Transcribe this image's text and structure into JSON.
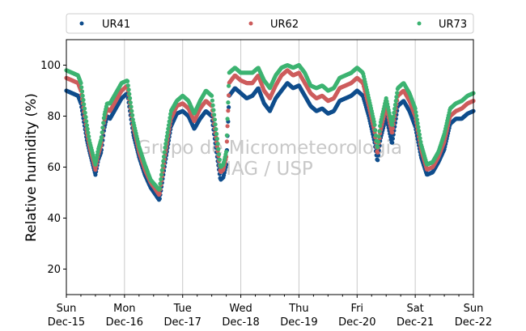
{
  "chart_data": {
    "type": "scatter",
    "title": "",
    "xlabel": "",
    "ylabel": "Relative humidity (%)",
    "ylim": [
      10,
      110
    ],
    "xlim": [
      0,
      7
    ],
    "yticks": [
      20,
      40,
      60,
      80,
      100
    ],
    "xticks": [
      {
        "day": "Sun",
        "date": "Dec-15"
      },
      {
        "day": "Mon",
        "date": "Dec-16"
      },
      {
        "day": "Tue",
        "date": "Dec-17"
      },
      {
        "day": "Wed",
        "date": "Dec-18"
      },
      {
        "day": "Thu",
        "date": "Dec-19"
      },
      {
        "day": "Fri",
        "date": "Dec-20"
      },
      {
        "day": "Sat",
        "date": "Dec-21"
      },
      {
        "day": "Sun",
        "date": "Dec-22"
      }
    ],
    "grid": "vertical",
    "legend_position": "top",
    "watermark": [
      "Grupo de Micrometeorologia",
      "IAG / USP"
    ],
    "x_unit": "days since Dec-15 00:00",
    "series": [
      {
        "name": "UR41",
        "color": "#0f4d8c",
        "x": [
          0,
          0.1,
          0.2,
          0.25,
          0.3,
          0.35,
          0.4,
          0.5,
          0.55,
          0.6,
          0.65,
          0.7,
          0.75,
          0.85,
          0.95,
          1.05,
          1.15,
          1.25,
          1.35,
          1.45,
          1.6,
          1.7,
          1.8,
          1.9,
          2.0,
          2.1,
          2.2,
          2.3,
          2.4,
          2.5,
          2.6,
          2.65,
          2.7,
          2.75,
          2.8,
          2.9,
          3.0,
          3.1,
          3.2,
          3.3,
          3.4,
          3.5,
          3.6,
          3.7,
          3.8,
          3.9,
          4.0,
          4.1,
          4.2,
          4.3,
          4.4,
          4.5,
          4.6,
          4.7,
          4.8,
          4.9,
          5.0,
          5.1,
          5.2,
          5.3,
          5.35,
          5.4,
          5.5,
          5.6,
          5.7,
          5.8,
          5.9,
          6.0,
          6.1,
          6.2,
          6.3,
          6.4,
          6.5,
          6.6,
          6.7,
          6.8,
          6.9,
          7.0
        ],
        "values": [
          90,
          89,
          88,
          85,
          78,
          71,
          66,
          57,
          63,
          66,
          75,
          80,
          79,
          83,
          87,
          89,
          73,
          64,
          57,
          52,
          47,
          62,
          76,
          81,
          82,
          80,
          75,
          79,
          82,
          80,
          63,
          55,
          56,
          61,
          88,
          91,
          89,
          87,
          88,
          91,
          85,
          82,
          87,
          90,
          93,
          91,
          92,
          88,
          84,
          82,
          83,
          81,
          82,
          86,
          87,
          88,
          90,
          88,
          80,
          70,
          62,
          71,
          80,
          69,
          84,
          86,
          82,
          76,
          64,
          57,
          58,
          62,
          67,
          77,
          79,
          79,
          81,
          82
        ]
      },
      {
        "name": "UR62",
        "color": "#cd5c5c",
        "x": [
          0,
          0.1,
          0.2,
          0.25,
          0.3,
          0.35,
          0.4,
          0.5,
          0.55,
          0.6,
          0.65,
          0.7,
          0.75,
          0.85,
          0.95,
          1.05,
          1.15,
          1.25,
          1.35,
          1.45,
          1.6,
          1.7,
          1.8,
          1.9,
          2.0,
          2.1,
          2.2,
          2.3,
          2.4,
          2.5,
          2.6,
          2.65,
          2.7,
          2.75,
          2.8,
          2.9,
          3.0,
          3.1,
          3.2,
          3.3,
          3.4,
          3.5,
          3.6,
          3.7,
          3.8,
          3.9,
          4.0,
          4.1,
          4.2,
          4.3,
          4.4,
          4.5,
          4.6,
          4.7,
          4.8,
          4.9,
          5.0,
          5.1,
          5.2,
          5.3,
          5.35,
          5.4,
          5.5,
          5.6,
          5.7,
          5.8,
          5.9,
          6.0,
          6.1,
          6.2,
          6.3,
          6.4,
          6.5,
          6.6,
          6.7,
          6.8,
          6.9,
          7.0
        ],
        "values": [
          95,
          94,
          93,
          90,
          82,
          74,
          68,
          59,
          65,
          69,
          78,
          83,
          82,
          86,
          90,
          92,
          76,
          66,
          59,
          54,
          49,
          65,
          79,
          84,
          85,
          83,
          78,
          83,
          86,
          84,
          67,
          58,
          59,
          64,
          93,
          96,
          94,
          93,
          93,
          96,
          90,
          87,
          92,
          96,
          98,
          96,
          97,
          93,
          89,
          87,
          88,
          86,
          87,
          91,
          92,
          93,
          95,
          93,
          84,
          74,
          65,
          74,
          84,
          73,
          88,
          90,
          86,
          80,
          67,
          59,
          60,
          64,
          70,
          80,
          82,
          83,
          85,
          86
        ]
      },
      {
        "name": "UR73",
        "color": "#3cb371",
        "x": [
          0,
          0.1,
          0.2,
          0.25,
          0.3,
          0.35,
          0.4,
          0.5,
          0.55,
          0.6,
          0.65,
          0.7,
          0.75,
          0.85,
          0.95,
          1.05,
          1.15,
          1.25,
          1.35,
          1.45,
          1.6,
          1.7,
          1.8,
          1.9,
          2.0,
          2.1,
          2.2,
          2.3,
          2.4,
          2.5,
          2.6,
          2.65,
          2.7,
          2.75,
          2.8,
          2.9,
          3.0,
          3.1,
          3.2,
          3.3,
          3.4,
          3.5,
          3.6,
          3.7,
          3.8,
          3.9,
          4.0,
          4.1,
          4.2,
          4.3,
          4.4,
          4.5,
          4.6,
          4.7,
          4.8,
          4.9,
          5.0,
          5.1,
          5.2,
          5.3,
          5.35,
          5.4,
          5.5,
          5.6,
          5.7,
          5.8,
          5.9,
          6.0,
          6.1,
          6.2,
          6.3,
          6.4,
          6.5,
          6.6,
          6.7,
          6.8,
          6.9,
          7.0
        ],
        "values": [
          98,
          97,
          96,
          93,
          85,
          77,
          70,
          61,
          67,
          71,
          80,
          85,
          85,
          89,
          93,
          94,
          78,
          68,
          61,
          55,
          51,
          68,
          82,
          86,
          88,
          86,
          81,
          86,
          90,
          88,
          70,
          60,
          61,
          66,
          97,
          99,
          97,
          97,
          97,
          99,
          94,
          91,
          96,
          99,
          100,
          99,
          100,
          97,
          92,
          91,
          92,
          90,
          91,
          95,
          96,
          97,
          99,
          97,
          87,
          77,
          67,
          77,
          87,
          76,
          91,
          93,
          89,
          83,
          69,
          61,
          62,
          66,
          73,
          83,
          85,
          86,
          88,
          89
        ]
      }
    ]
  }
}
